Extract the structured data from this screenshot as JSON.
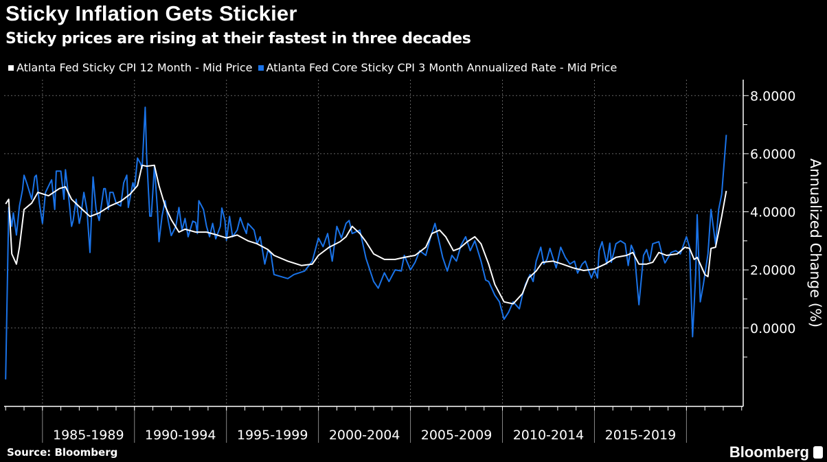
{
  "header": {
    "title": "Sticky Inflation Gets Stickier",
    "subtitle": "Sticky prices are rising at their fastest in three decades"
  },
  "footer": {
    "source": "Source: Bloomberg",
    "logo": "Bloomberg"
  },
  "colors": {
    "background": "#000000",
    "series1": "#ffffff",
    "series2": "#1a73e8",
    "grid": "#555555"
  },
  "chart_data": {
    "type": "line",
    "title": "Sticky Inflation Gets Stickier",
    "subtitle": "Sticky prices are rising at their fastest in three decades",
    "ylabel": "Annualized Change (%)",
    "xlabel": "",
    "ylim": [
      -2.7,
      8.55
    ],
    "xlim": [
      "1982-12",
      "2023-02"
    ],
    "yticks": [
      0,
      2,
      4,
      6,
      8
    ],
    "ytick_labels": [
      "0.0000",
      "2.0000",
      "4.0000",
      "6.0000",
      "8.0000"
    ],
    "xgrid": [
      "1985-01",
      "1990-01",
      "1995-01",
      "2000-01",
      "2005-01",
      "2010-01",
      "2015-01",
      "2020-01"
    ],
    "xtick_labels": [
      "1985-1989",
      "1990-1994",
      "1995-1999",
      "2000-2004",
      "2005-2009",
      "2010-2014",
      "2015-2019"
    ],
    "grid": true,
    "legend_position": "top-left",
    "series": [
      {
        "name": "Atlanta Fed Sticky CPI 12 Month - Mid Price",
        "color": "#ffffff",
        "x": [
          "1983-01",
          "1983-03",
          "1983-05",
          "1983-08",
          "1983-10",
          "1984-01",
          "1984-06",
          "1984-10",
          "1985-05",
          "1985-12",
          "1986-04",
          "1986-08",
          "1987-02",
          "1987-08",
          "1988-02",
          "1988-09",
          "1989-04",
          "1989-10",
          "1990-03",
          "1990-06",
          "1990-09",
          "1991-02",
          "1991-05",
          "1991-09",
          "1992-01",
          "1992-06",
          "1992-10",
          "1993-05",
          "1993-12",
          "1994-07",
          "1995-01",
          "1995-08",
          "1996-03",
          "1996-09",
          "1997-04",
          "1997-08",
          "1998-05",
          "1999-02",
          "1999-09",
          "2000-01",
          "2000-08",
          "2001-03",
          "2001-07",
          "2001-11",
          "2002-04",
          "2002-08",
          "2003-01",
          "2003-08",
          "2004-03",
          "2004-09",
          "2005-04",
          "2005-11",
          "2006-03",
          "2006-08",
          "2006-12",
          "2007-05",
          "2007-09",
          "2008-02",
          "2008-07",
          "2008-11",
          "2009-04",
          "2009-08",
          "2010-02",
          "2010-08",
          "2011-02",
          "2011-06",
          "2011-11",
          "2012-03",
          "2012-10",
          "2013-04",
          "2013-11",
          "2014-06",
          "2015-01",
          "2015-08",
          "2016-03",
          "2016-10",
          "2017-02",
          "2017-06",
          "2017-11",
          "2018-03",
          "2018-07",
          "2018-12",
          "2019-07",
          "2019-12",
          "2020-03",
          "2020-06",
          "2020-08",
          "2020-10",
          "2021-01",
          "2021-03",
          "2021-05",
          "2021-08",
          "2021-12",
          "2022-03"
        ],
        "y": [
          4.27,
          4.43,
          2.55,
          2.2,
          2.78,
          4.08,
          4.3,
          4.67,
          4.55,
          4.8,
          4.86,
          4.43,
          4.13,
          3.84,
          3.96,
          4.2,
          4.36,
          4.6,
          4.9,
          5.6,
          5.57,
          5.6,
          4.9,
          4.2,
          3.73,
          3.3,
          3.4,
          3.3,
          3.3,
          3.2,
          3.1,
          3.2,
          3.0,
          2.9,
          2.7,
          2.5,
          2.3,
          2.15,
          2.2,
          2.5,
          2.78,
          2.97,
          3.14,
          3.5,
          3.25,
          2.97,
          2.55,
          2.36,
          2.36,
          2.43,
          2.5,
          2.78,
          3.25,
          3.37,
          3.14,
          2.66,
          2.74,
          2.97,
          3.14,
          2.9,
          2.2,
          1.5,
          0.9,
          0.83,
          1.18,
          1.72,
          1.96,
          2.26,
          2.3,
          2.2,
          2.07,
          1.98,
          2.03,
          2.2,
          2.43,
          2.5,
          2.6,
          2.2,
          2.2,
          2.26,
          2.6,
          2.5,
          2.55,
          2.78,
          2.74,
          2.36,
          2.43,
          2.2,
          1.84,
          1.77,
          2.74,
          2.78,
          3.84,
          4.72
        ]
      },
      {
        "name": "Atlanta Fed Core Sticky CPI 3 Month Annualized Rate - Mid Price",
        "color": "#1a73e8",
        "x": [
          "1983-01",
          "1983-03",
          "1983-05",
          "1983-06",
          "1983-08",
          "1983-10",
          "1983-12",
          "1984-01",
          "1984-03",
          "1984-06",
          "1984-08",
          "1984-09",
          "1984-11",
          "1985-01",
          "1985-03",
          "1985-06",
          "1985-07",
          "1985-09",
          "1985-10",
          "1986-01",
          "1986-03",
          "1986-04",
          "1986-06",
          "1986-08",
          "1986-09",
          "1986-11",
          "1987-01",
          "1987-02",
          "1987-04",
          "1987-06",
          "1987-08",
          "1987-10",
          "1987-12",
          "1988-02",
          "1988-05",
          "1988-06",
          "1988-08",
          "1988-09",
          "1988-11",
          "1989-01",
          "1989-04",
          "1989-06",
          "1989-08",
          "1989-09",
          "1989-12",
          "1990-01",
          "1990-03",
          "1990-05",
          "1990-06",
          "1990-08",
          "1990-09",
          "1990-11",
          "1990-12",
          "1991-02",
          "1991-04",
          "1991-05",
          "1991-07",
          "1991-09",
          "1991-11",
          "1992-01",
          "1992-04",
          "1992-06",
          "1992-08",
          "1992-10",
          "1992-12",
          "1993-03",
          "1993-05",
          "1993-06",
          "1993-07",
          "1993-10",
          "1993-12",
          "1994-02",
          "1994-04",
          "1994-06",
          "1994-09",
          "1994-10",
          "1994-12",
          "1995-01",
          "1995-03",
          "1995-05",
          "1995-08",
          "1995-10",
          "1995-12",
          "1996-02",
          "1996-03",
          "1996-07",
          "1996-09",
          "1996-11",
          "1997-02",
          "1997-04",
          "1997-06",
          "1997-08",
          "1998-05",
          "1998-09",
          "1999-04",
          "1999-09",
          "2000-01",
          "2000-04",
          "2000-07",
          "2000-10",
          "2001-01",
          "2001-04",
          "2001-07",
          "2001-09",
          "2001-11",
          "2002-04",
          "2002-08",
          "2003-01",
          "2003-04",
          "2003-08",
          "2003-11",
          "2004-03",
          "2004-07",
          "2004-09",
          "2005-01",
          "2005-04",
          "2005-07",
          "2005-11",
          "2006-02",
          "2006-05",
          "2006-08",
          "2006-10",
          "2007-01",
          "2007-04",
          "2007-07",
          "2007-10",
          "2008-01",
          "2008-04",
          "2008-07",
          "2008-11",
          "2009-02",
          "2009-04",
          "2009-08",
          "2009-11",
          "2010-02",
          "2010-05",
          "2010-08",
          "2010-12",
          "2011-02",
          "2011-04",
          "2011-07",
          "2011-09",
          "2011-11",
          "2012-02",
          "2012-04",
          "2012-06",
          "2012-08",
          "2012-12",
          "2013-03",
          "2013-06",
          "2013-09",
          "2013-12",
          "2014-02",
          "2014-05",
          "2014-07",
          "2014-09",
          "2014-11",
          "2015-01",
          "2015-03",
          "2015-04",
          "2015-06",
          "2015-09",
          "2015-11",
          "2015-12",
          "2016-03",
          "2016-06",
          "2016-09",
          "2016-11",
          "2017-01",
          "2017-03",
          "2017-06",
          "2017-09",
          "2017-11",
          "2018-01",
          "2018-03",
          "2018-07",
          "2018-09",
          "2018-11",
          "2019-03",
          "2019-06",
          "2019-09",
          "2019-12",
          "2020-01",
          "2020-03",
          "2020-05",
          "2020-07",
          "2020-08",
          "2020-10",
          "2020-12",
          "2021-03",
          "2021-05",
          "2021-08",
          "2021-10",
          "2021-12",
          "2022-03"
        ],
        "y": [
          -1.77,
          4.15,
          3.5,
          3.96,
          3.2,
          4.2,
          4.76,
          5.26,
          4.95,
          4.43,
          5.2,
          5.26,
          4.3,
          3.6,
          4.67,
          5.0,
          5.1,
          4.08,
          5.4,
          5.4,
          4.43,
          5.45,
          4.55,
          3.5,
          3.7,
          4.43,
          3.6,
          3.85,
          4.67,
          4.08,
          2.6,
          5.2,
          4.08,
          3.7,
          4.8,
          4.8,
          4.08,
          4.67,
          4.67,
          4.3,
          4.2,
          5.0,
          5.26,
          4.15,
          5.0,
          4.8,
          5.85,
          5.66,
          5.5,
          7.6,
          5.85,
          3.85,
          3.85,
          5.57,
          4.08,
          2.97,
          3.85,
          4.38,
          3.7,
          3.18,
          3.5,
          4.15,
          3.37,
          3.77,
          3.14,
          3.68,
          3.63,
          3.25,
          4.38,
          4.08,
          3.5,
          3.14,
          3.6,
          3.07,
          3.5,
          4.13,
          3.7,
          3.02,
          3.84,
          3.14,
          3.37,
          3.8,
          3.5,
          3.25,
          3.6,
          3.37,
          2.9,
          3.14,
          2.2,
          2.67,
          2.55,
          1.84,
          1.7,
          1.84,
          1.96,
          2.3,
          3.1,
          2.8,
          3.25,
          2.3,
          3.5,
          3.1,
          3.6,
          3.7,
          3.25,
          3.37,
          2.4,
          1.6,
          1.37,
          1.9,
          1.6,
          2.0,
          1.96,
          2.5,
          2.0,
          2.26,
          2.66,
          2.5,
          3.1,
          3.6,
          2.9,
          2.43,
          1.96,
          2.5,
          2.3,
          2.85,
          3.14,
          2.66,
          3.0,
          2.3,
          1.65,
          1.6,
          1.13,
          0.9,
          0.3,
          0.54,
          0.9,
          0.66,
          1.13,
          1.5,
          1.84,
          1.6,
          2.3,
          2.78,
          2.2,
          2.36,
          2.74,
          2.07,
          2.78,
          2.43,
          2.2,
          2.3,
          1.89,
          2.2,
          2.3,
          2.0,
          1.72,
          2.0,
          1.72,
          2.66,
          2.97,
          2.2,
          2.92,
          2.26,
          2.9,
          3.0,
          2.9,
          2.15,
          2.85,
          2.6,
          0.8,
          2.5,
          2.7,
          2.3,
          2.9,
          2.97,
          2.55,
          2.24,
          2.6,
          2.66,
          2.55,
          3.0,
          3.14,
          2.78,
          -0.3,
          1.84,
          3.9,
          0.9,
          1.5,
          2.55,
          4.08,
          2.88,
          4.08,
          4.6,
          6.65
        ]
      }
    ]
  }
}
